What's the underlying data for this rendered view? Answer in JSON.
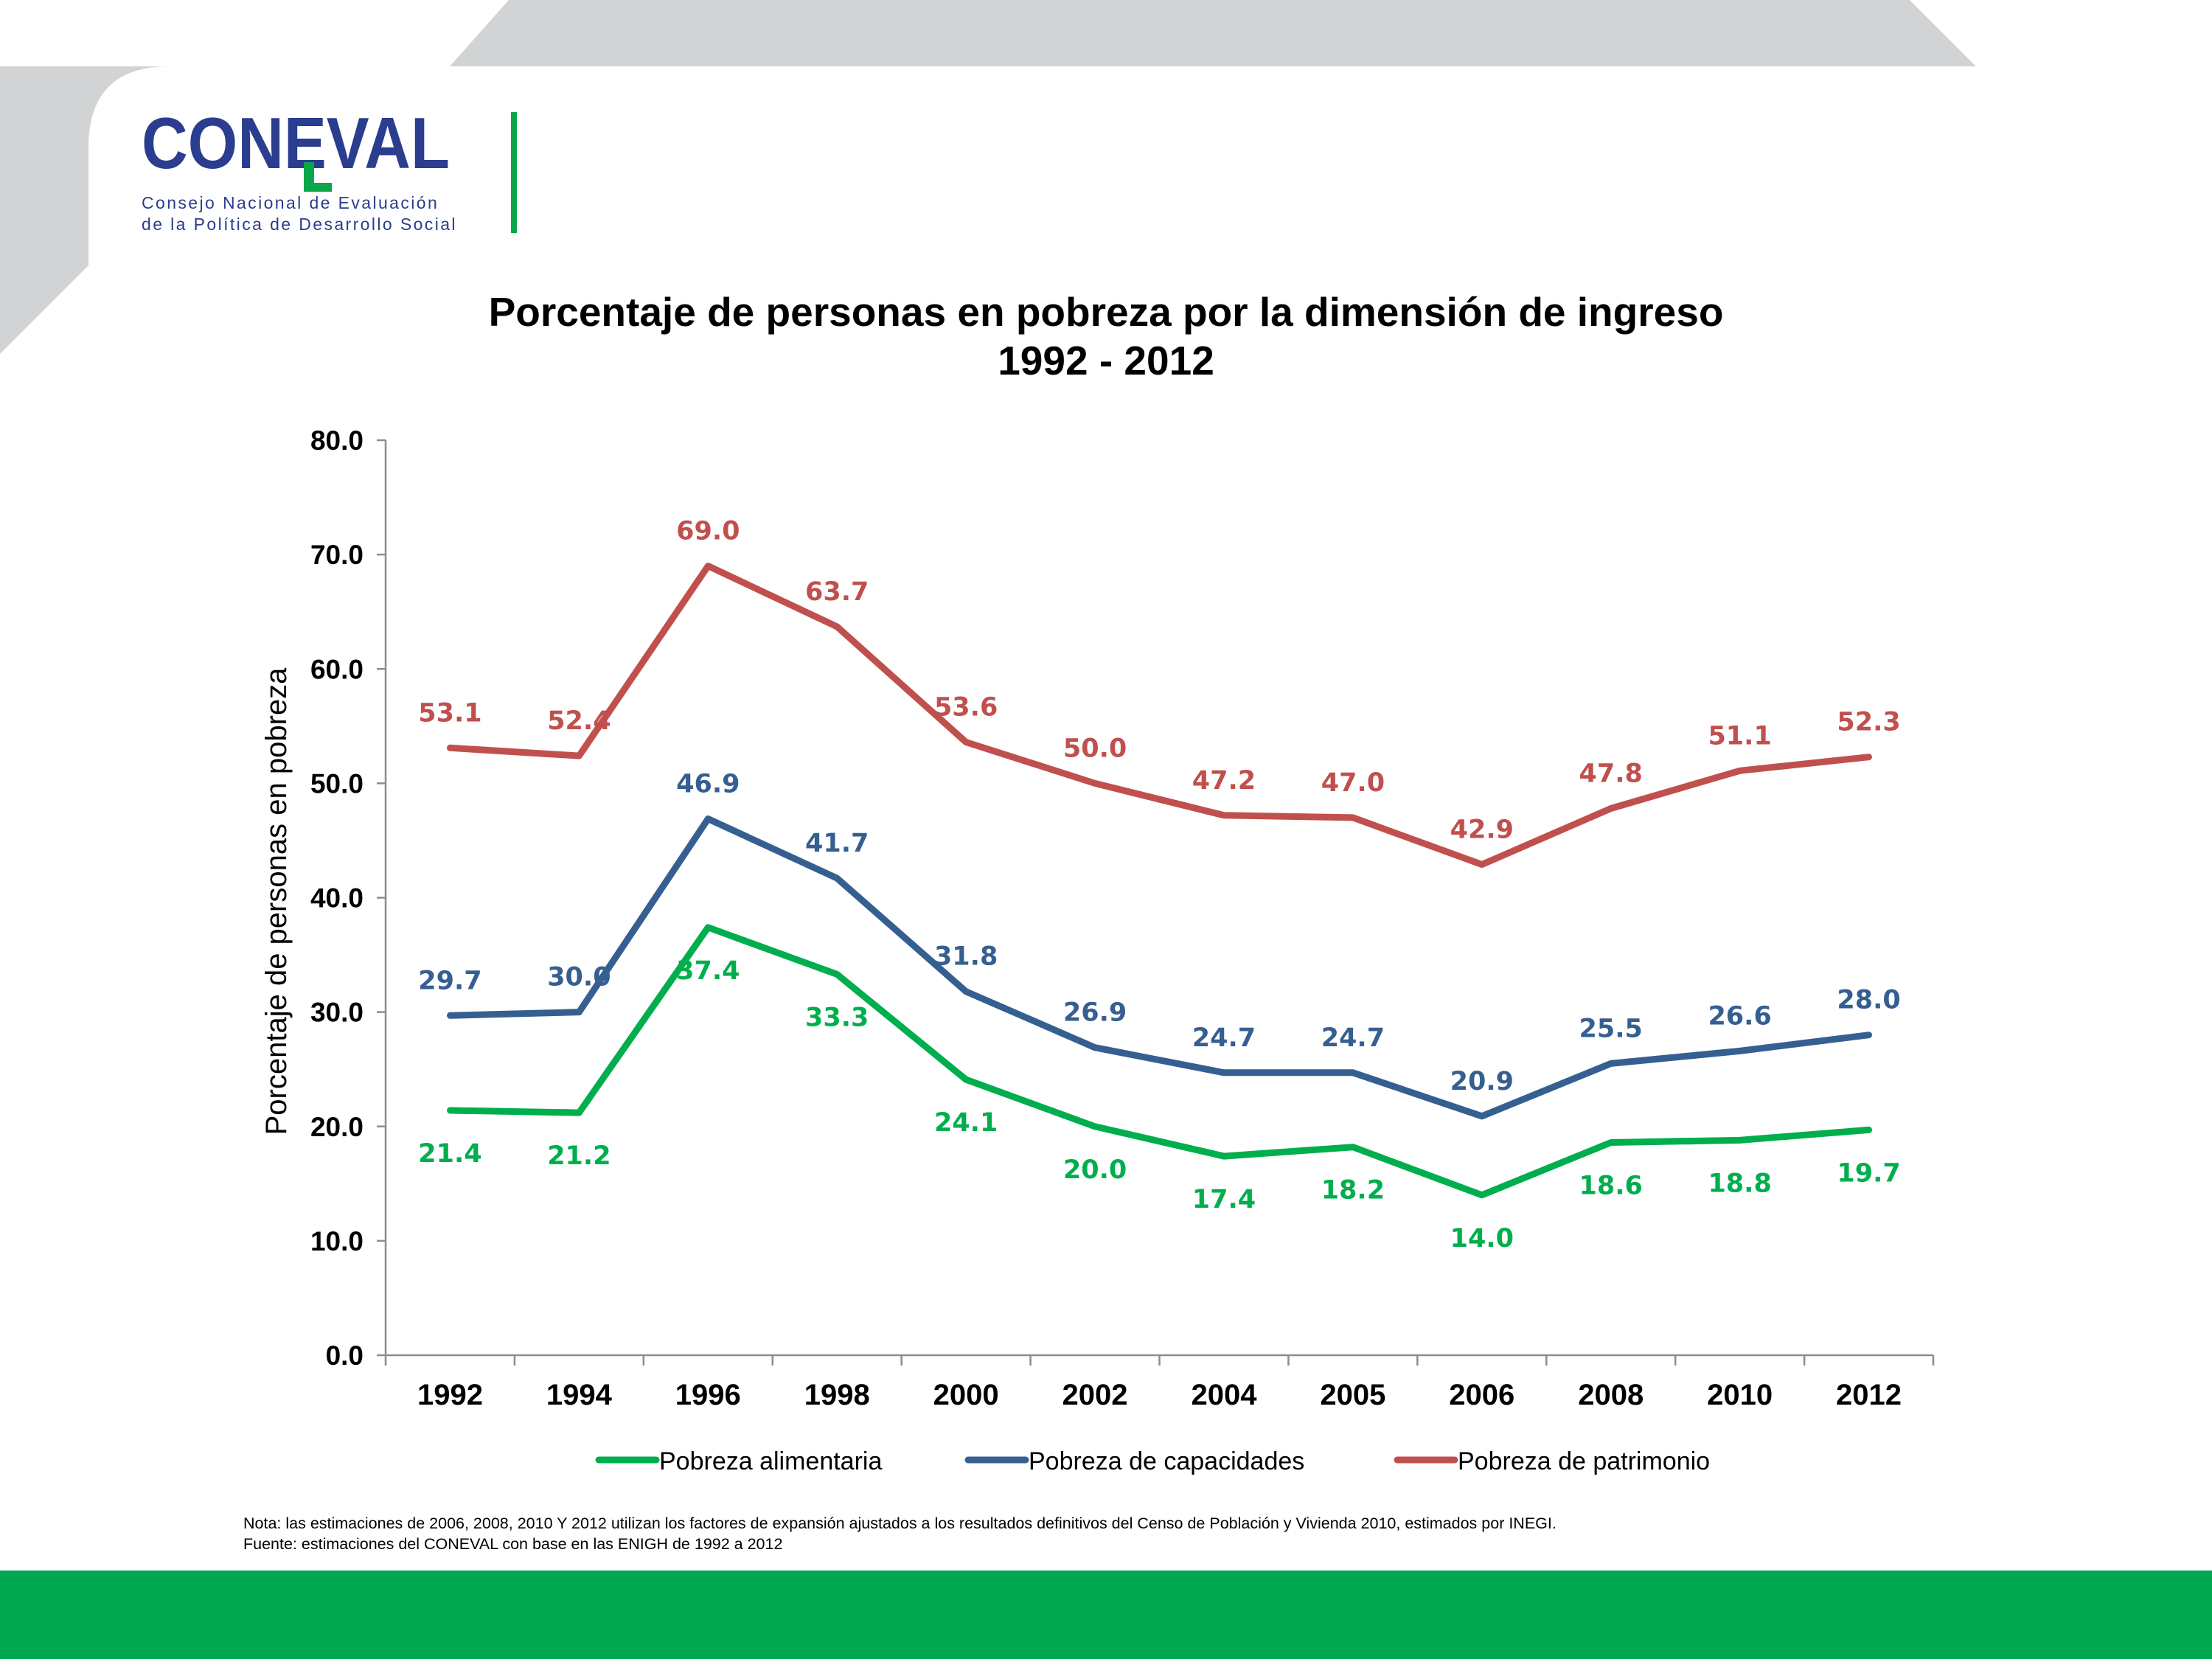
{
  "logo": {
    "wordmark": "CONEVAL",
    "subtitle_line1": "Consejo Nacional de Evaluación",
    "subtitle_line2": "de la Política de Desarrollo Social"
  },
  "title": {
    "line1": "Porcentaje de personas en pobreza por la dimensión de ingreso",
    "line2": "1992 - 2012"
  },
  "chart_data": {
    "type": "line",
    "title": "Porcentaje de personas en pobreza por la dimensión de ingreso 1992 - 2012",
    "xlabel": "",
    "ylabel": "Porcentaje de personas en pobreza",
    "ylim": [
      0,
      80
    ],
    "y_ticks": [
      "0.0",
      "10.0",
      "20.0",
      "30.0",
      "40.0",
      "50.0",
      "60.0",
      "70.0",
      "80.0"
    ],
    "categories": [
      "1992",
      "1994",
      "1996",
      "1998",
      "2000",
      "2002",
      "2004",
      "2005",
      "2006",
      "2008",
      "2010",
      "2012"
    ],
    "grid": false,
    "legend_position": "bottom",
    "series": [
      {
        "name": "Pobreza alimentaria",
        "color": "#00ae4d",
        "values": [
          21.4,
          21.2,
          37.4,
          33.3,
          24.1,
          20.0,
          17.4,
          18.2,
          14.0,
          18.6,
          18.8,
          19.7
        ],
        "labels": [
          "21.4",
          "21.2",
          "37.4",
          "33.3",
          "24.1",
          "20.0",
          "17.4",
          "18.2",
          "14.0",
          "18.6",
          "18.8",
          "19.7"
        ],
        "label_side": [
          "below",
          "below",
          "below",
          "below",
          "below",
          "below",
          "below",
          "below",
          "below",
          "below",
          "below",
          "below"
        ]
      },
      {
        "name": "Pobreza de capacidades",
        "color": "#365f91",
        "values": [
          29.7,
          30.0,
          46.9,
          41.7,
          31.8,
          26.9,
          24.7,
          24.7,
          20.9,
          25.5,
          26.6,
          28.0
        ],
        "labels": [
          "29.7",
          "30.0",
          "46.9",
          "41.7",
          "31.8",
          "26.9",
          "24.7",
          "24.7",
          "20.9",
          "25.5",
          "26.6",
          "28.0"
        ],
        "label_side": [
          "above",
          "above",
          "above",
          "above",
          "above",
          "above",
          "above",
          "above",
          "above",
          "above",
          "above",
          "above"
        ]
      },
      {
        "name": "Pobreza de patrimonio",
        "color": "#c0504d",
        "values": [
          53.1,
          52.4,
          69.0,
          63.7,
          53.6,
          50.0,
          47.2,
          47.0,
          42.9,
          47.8,
          51.1,
          52.3
        ],
        "labels": [
          "53.1",
          "52.4",
          "69.0",
          "63.7",
          "53.6",
          "50.0",
          "47.2",
          "47.0",
          "42.9",
          "47.8",
          "51.1",
          "52.3"
        ],
        "label_side": [
          "above",
          "above",
          "above",
          "above",
          "above",
          "above",
          "above",
          "above",
          "above",
          "above",
          "above",
          "above"
        ]
      }
    ]
  },
  "notes": {
    "nota": "Nota: las estimaciones de 2006, 2008, 2010 Y 2012 utilizan los factores de expansión ajustados a los resultados definitivos del Censo de Población y Vivienda 2010, estimados por INEGI.",
    "fuente": "Fuente: estimaciones del CONEVAL con base en las ENIGH de 1992 a 2012"
  }
}
